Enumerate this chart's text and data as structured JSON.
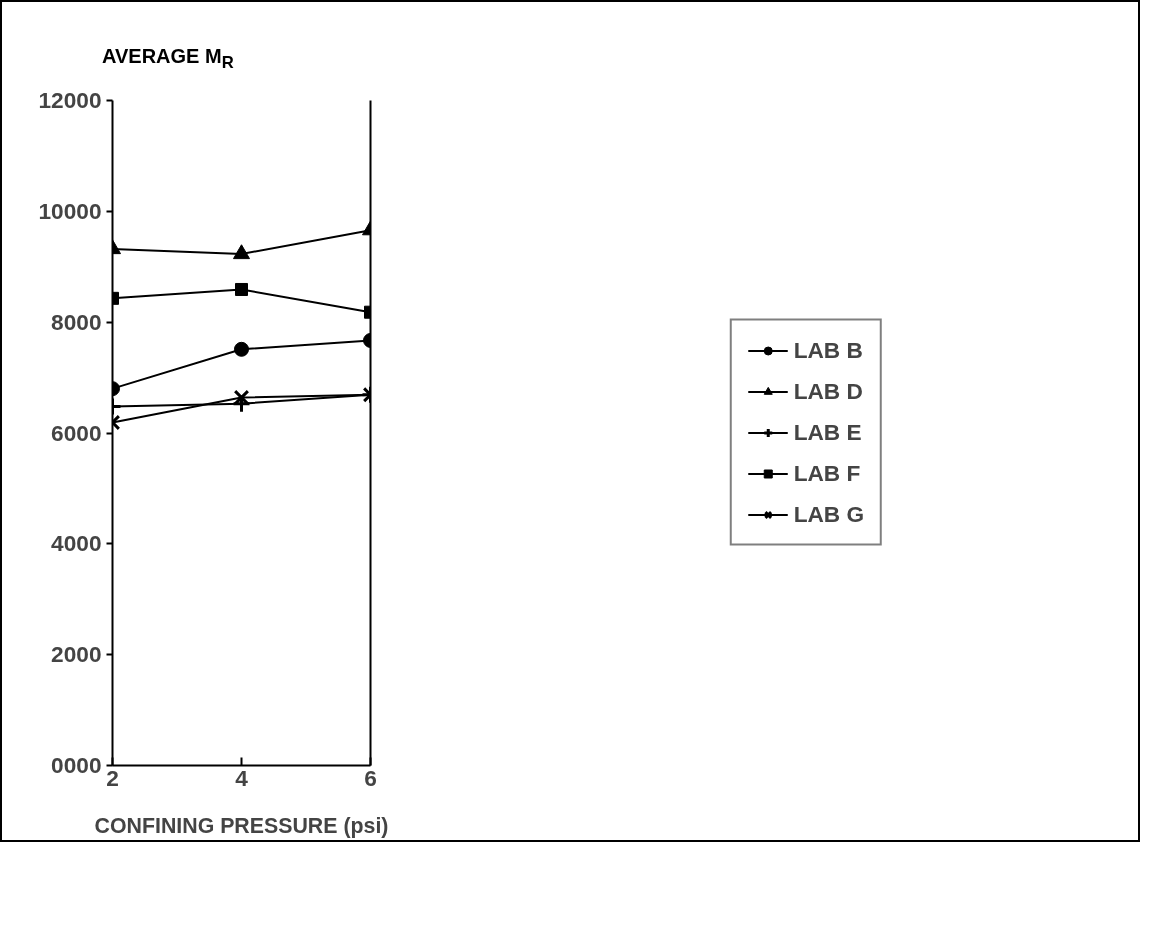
{
  "chart_data": {
    "type": "line",
    "ylabel": "AVERAGE M$_{R}$",
    "xlabel": "CONFINING PRESSURE (psi)",
    "x": [
      2,
      4,
      6
    ],
    "xlim": [
      2,
      6
    ],
    "xticks": [
      2,
      4,
      6
    ],
    "ylim": [
      0,
      12000
    ],
    "yticks": [
      {
        "value": 0,
        "label": "0000"
      },
      2000,
      4000,
      6000,
      8000,
      10000,
      12000
    ],
    "grid": false,
    "legend": "right",
    "line_style": "solid",
    "series": [
      {
        "name": "LAB B",
        "color": "#000000",
        "marker": "circle",
        "values": [
          6800,
          7510,
          7670
        ]
      },
      {
        "name": "LAB D",
        "color": "#000000",
        "marker": "triangle",
        "values": [
          9320,
          9230,
          9660
        ]
      },
      {
        "name": "LAB E",
        "color": "#000000",
        "marker": "cross",
        "values": [
          6480,
          6530,
          6690
        ]
      },
      {
        "name": "LAB F",
        "color": "#000000",
        "marker": "square",
        "values": [
          8430,
          8590,
          8180
        ]
      },
      {
        "name": "LAB G",
        "color": "#000000",
        "marker": "x",
        "values": [
          6190,
          6640,
          6690
        ]
      }
    ]
  }
}
